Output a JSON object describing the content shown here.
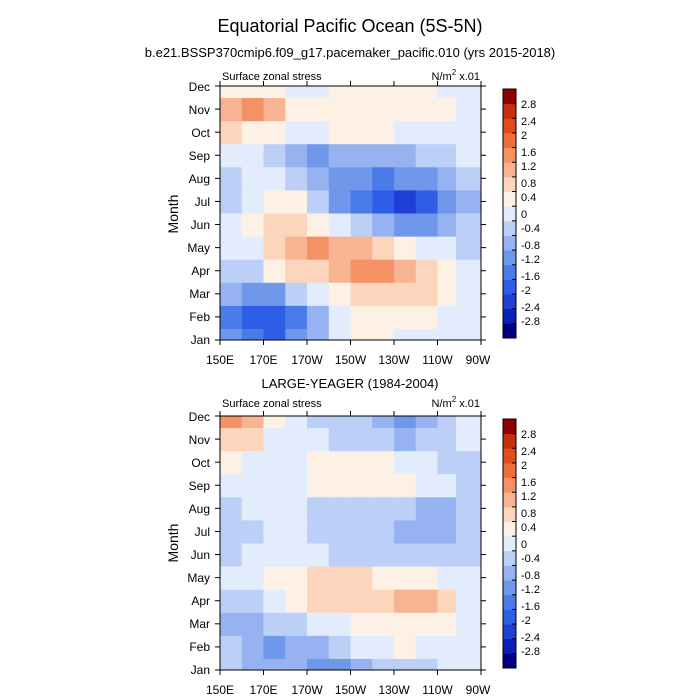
{
  "figure": {
    "title": "Equatorial Pacific Ocean (5S-5N)",
    "colors": {
      "levels": [
        "#00007f",
        "#0a1fb8",
        "#1f3fd6",
        "#2f5ee6",
        "#4a7be8",
        "#6f97ea",
        "#96b2f0",
        "#bcd0f7",
        "#e2ecfc",
        "#fdf1e6",
        "#fbd6bd",
        "#f8b393",
        "#f49266",
        "#ef6f3c",
        "#e44a1b",
        "#c92d0d",
        "#8f0000"
      ]
    },
    "colorbar": {
      "labels": [
        "2.8",
        "2.4",
        "2",
        "1.6",
        "1.2",
        "0.8",
        "0.4",
        "0",
        "-0.4",
        "-0.8",
        "-1.2",
        "-1.6",
        "-2",
        "-2.4",
        "-2.8"
      ]
    }
  },
  "chart_data": [
    {
      "type": "heatmap",
      "title": "b.e21.BSSP370cmip6.f09_g17.pacemaker_pacific.010 (yrs 2015-2018)",
      "left_label": "Surface zonal stress",
      "units": "N/m",
      "units_sup": "2",
      "units_scale": "x.01",
      "ylabel": "Month",
      "x_tick_labels": [
        "150E",
        "170E",
        "170W",
        "150W",
        "130W",
        "110W",
        "90W"
      ],
      "y_tick_labels": [
        "Jan",
        "Feb",
        "Mar",
        "Apr",
        "May",
        "Jun",
        "Jul",
        "Aug",
        "Sep",
        "Oct",
        "Nov",
        "Dec"
      ],
      "xlim": [
        150,
        270
      ],
      "contour_levels": [
        -2.8,
        -2.4,
        -2,
        -1.6,
        -1.2,
        -0.8,
        -0.4,
        0,
        0.4,
        0.8,
        1.2,
        1.6,
        2,
        2.4,
        2.8
      ],
      "rows": [
        "Jan",
        "Feb",
        "Mar",
        "Apr",
        "May",
        "Jun",
        "Jul",
        "Aug",
        "Sep",
        "Oct",
        "Nov",
        "Dec"
      ],
      "lon": [
        155,
        165,
        175,
        185,
        195,
        205,
        215,
        225,
        235,
        245,
        255,
        262
      ],
      "values": [
        [
          -0.9,
          -1.6,
          -1.8,
          -1.2,
          -0.5,
          0.2,
          0.5,
          0.5,
          0.3,
          0.2,
          0.2,
          0.0
        ],
        [
          -1.3,
          -1.8,
          -1.9,
          -1.4,
          -0.6,
          0.2,
          0.5,
          0.6,
          0.7,
          0.6,
          0.3,
          0.0
        ],
        [
          -0.8,
          -1.2,
          -0.9,
          -0.4,
          0.2,
          0.6,
          0.8,
          0.9,
          1.0,
          0.9,
          0.5,
          0.1
        ],
        [
          -0.3,
          -0.2,
          0.4,
          0.8,
          1.1,
          1.4,
          1.6,
          1.6,
          1.3,
          1.1,
          0.6,
          0.1
        ],
        [
          0.1,
          0.3,
          0.9,
          1.3,
          1.6,
          1.5,
          1.2,
          0.8,
          0.5,
          0.3,
          0.1,
          -0.1
        ],
        [
          0.0,
          0.4,
          0.8,
          0.9,
          0.6,
          0.1,
          -0.4,
          -0.8,
          -1.0,
          -0.9,
          -0.6,
          -0.3
        ],
        [
          -0.2,
          0.3,
          0.6,
          0.4,
          -0.3,
          -0.9,
          -1.4,
          -2.0,
          -2.2,
          -1.8,
          -1.1,
          -0.5
        ],
        [
          -0.3,
          0.0,
          0.2,
          -0.2,
          -0.6,
          -1.0,
          -1.2,
          -1.3,
          -1.2,
          -0.9,
          -0.6,
          -0.3
        ],
        [
          0.2,
          0.1,
          -0.1,
          -0.5,
          -0.9,
          -0.8,
          -0.6,
          -0.6,
          -0.5,
          -0.4,
          -0.2,
          0.0
        ],
        [
          0.8,
          0.6,
          0.4,
          0.3,
          0.3,
          0.5,
          0.5,
          0.4,
          0.3,
          0.2,
          0.1,
          0.1
        ],
        [
          1.4,
          1.9,
          1.2,
          0.6,
          0.5,
          0.6,
          0.7,
          0.7,
          0.6,
          0.5,
          0.4,
          0.2
        ],
        [
          0.6,
          0.7,
          0.5,
          0.3,
          0.3,
          0.5,
          0.6,
          0.6,
          0.5,
          0.4,
          0.2,
          0.0
        ]
      ]
    },
    {
      "type": "heatmap",
      "title": "LARGE-YEAGER (1984-2004)",
      "left_label": "Surface zonal stress",
      "units": "N/m",
      "units_sup": "2",
      "units_scale": "x.01",
      "ylabel": "Month",
      "x_tick_labels": [
        "150E",
        "170E",
        "170W",
        "150W",
        "130W",
        "110W",
        "90W"
      ],
      "y_tick_labels": [
        "Jan",
        "Feb",
        "Mar",
        "Apr",
        "May",
        "Jun",
        "Jul",
        "Aug",
        "Sep",
        "Oct",
        "Nov",
        "Dec"
      ],
      "xlim": [
        150,
        270
      ],
      "contour_levels": [
        -2.8,
        -2.4,
        -2,
        -1.6,
        -1.2,
        -0.8,
        -0.4,
        0,
        0.4,
        0.8,
        1.2,
        1.6,
        2,
        2.4,
        2.8
      ],
      "rows": [
        "Jan",
        "Feb",
        "Mar",
        "Apr",
        "May",
        "Jun",
        "Jul",
        "Aug",
        "Sep",
        "Oct",
        "Nov",
        "Dec"
      ],
      "lon": [
        155,
        165,
        175,
        185,
        195,
        205,
        215,
        225,
        235,
        245,
        255,
        262
      ],
      "values": [
        [
          -0.2,
          -0.5,
          -0.6,
          -0.8,
          -1.0,
          -0.9,
          -0.6,
          -0.4,
          -0.3,
          -0.2,
          0.0,
          0.1
        ],
        [
          -0.4,
          -0.8,
          -0.9,
          -0.7,
          -0.5,
          -0.3,
          0.1,
          0.3,
          0.4,
          0.3,
          0.2,
          0.0
        ],
        [
          -0.5,
          -0.6,
          -0.4,
          -0.1,
          0.2,
          0.3,
          0.5,
          0.6,
          0.7,
          0.6,
          0.4,
          0.0
        ],
        [
          -0.3,
          -0.1,
          0.3,
          0.6,
          0.8,
          0.9,
          1.0,
          1.1,
          1.3,
          1.4,
          0.8,
          0.1
        ],
        [
          0.0,
          0.2,
          0.4,
          0.6,
          0.8,
          0.9,
          0.8,
          0.7,
          0.6,
          0.5,
          0.3,
          0.0
        ],
        [
          -0.2,
          0.1,
          0.2,
          0.1,
          0.0,
          -0.1,
          -0.2,
          -0.3,
          -0.3,
          -0.3,
          -0.3,
          -0.1
        ],
        [
          -0.4,
          -0.1,
          0.1,
          0.0,
          -0.1,
          -0.2,
          -0.3,
          -0.4,
          -0.5,
          -0.7,
          -0.8,
          -0.4
        ],
        [
          -0.3,
          0.0,
          0.1,
          0.0,
          -0.1,
          -0.2,
          -0.2,
          -0.3,
          -0.3,
          -0.5,
          -0.6,
          -0.3
        ],
        [
          0.1,
          0.2,
          0.1,
          0.2,
          0.5,
          0.6,
          0.7,
          0.6,
          0.4,
          0.2,
          0.0,
          -0.1
        ],
        [
          0.5,
          0.3,
          0.1,
          0.3,
          0.6,
          0.5,
          0.5,
          0.4,
          0.3,
          0.1,
          -0.1,
          -0.1
        ],
        [
          1.1,
          0.8,
          0.3,
          0.1,
          0.1,
          -0.1,
          -0.3,
          -0.4,
          -0.5,
          -0.3,
          -0.1,
          0.0
        ],
        [
          1.7,
          1.2,
          0.4,
          0.1,
          -0.1,
          -0.3,
          -0.4,
          -0.7,
          -0.9,
          -0.5,
          -0.1,
          0.0
        ]
      ]
    }
  ]
}
